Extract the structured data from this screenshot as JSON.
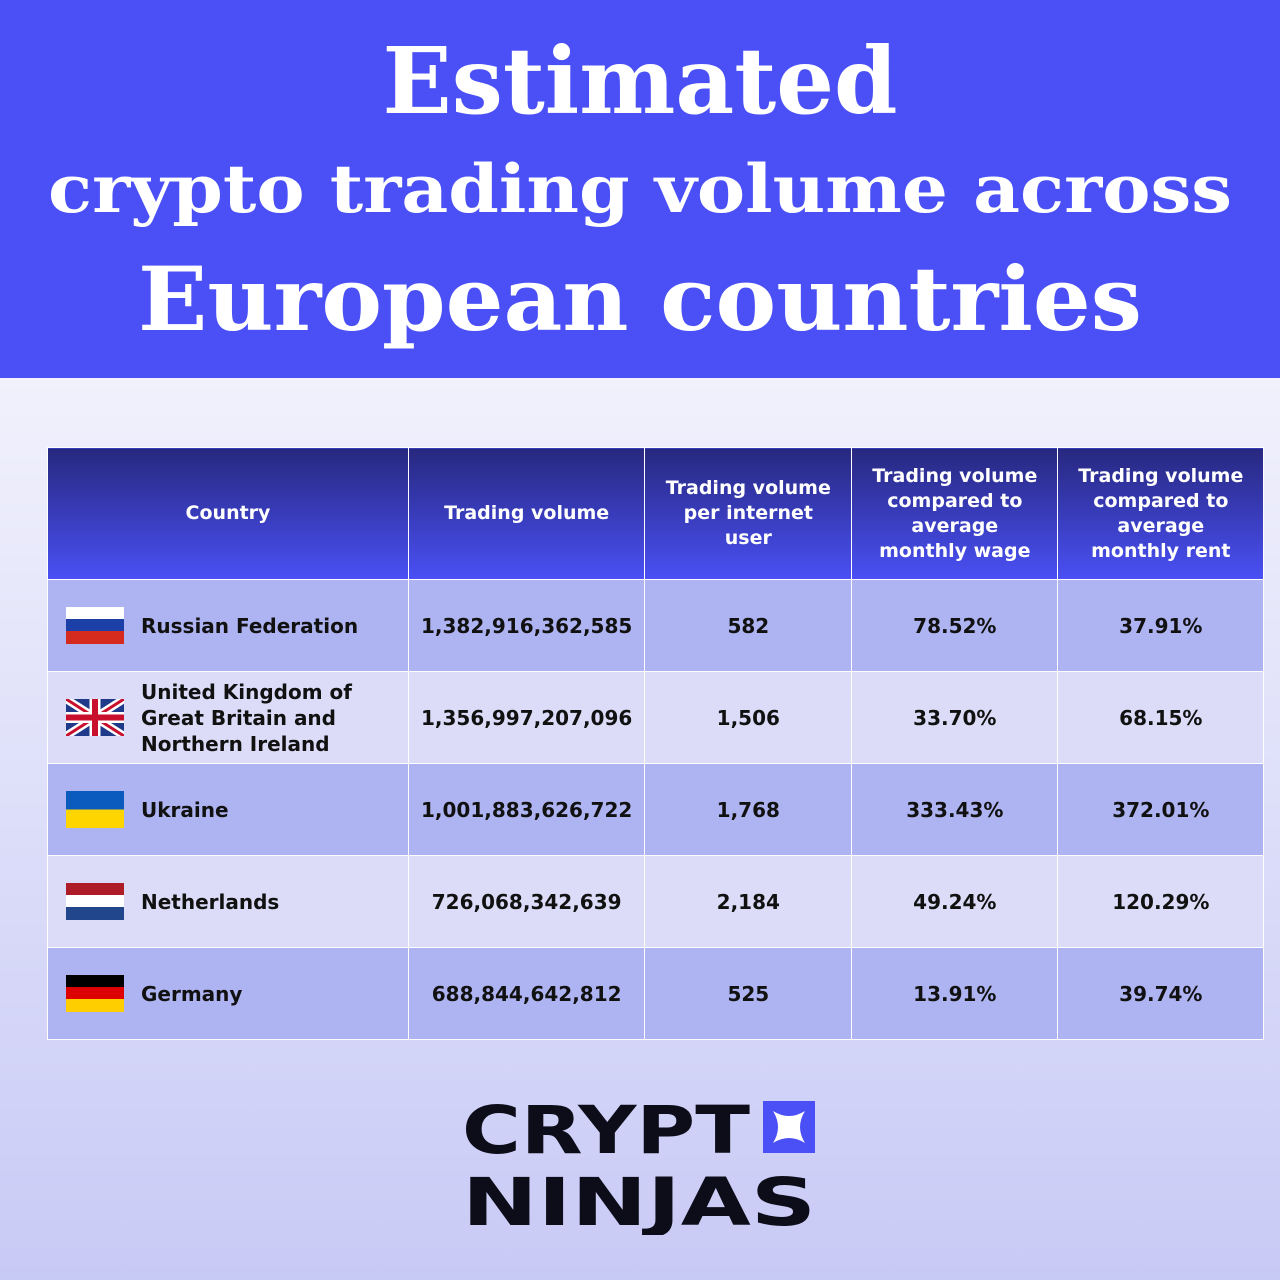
{
  "header": {
    "title": [
      "Estimated",
      "crypto trading volume across",
      "European countries"
    ]
  },
  "table": {
    "columns": [
      "Country",
      "Trading volume",
      "Trading volume per internet user",
      "Trading volume compared to average monthly wage",
      "Trading volume compared to average monthly rent"
    ],
    "rows": [
      [
        "Russian Federation",
        "1,382,916,362,585",
        "582",
        "78.52%",
        "37.91%"
      ],
      [
        "United Kingdom of Great Britain and Northern Ireland",
        "1,356,997,207,096",
        "1,506",
        "33.70%",
        "68.15%"
      ],
      [
        "Ukraine",
        "1,001,883,626,722",
        "1,768",
        "333.43%",
        "372.01%"
      ],
      [
        "Netherlands",
        "726,068,342,639",
        "2,184",
        "49.24%",
        "120.29%"
      ],
      [
        "Germany",
        "688,844,642,812",
        "525",
        "13.91%",
        "39.74%"
      ]
    ]
  },
  "logo": {
    "line1": "CRYPT",
    "line2": "NINJAS"
  }
}
